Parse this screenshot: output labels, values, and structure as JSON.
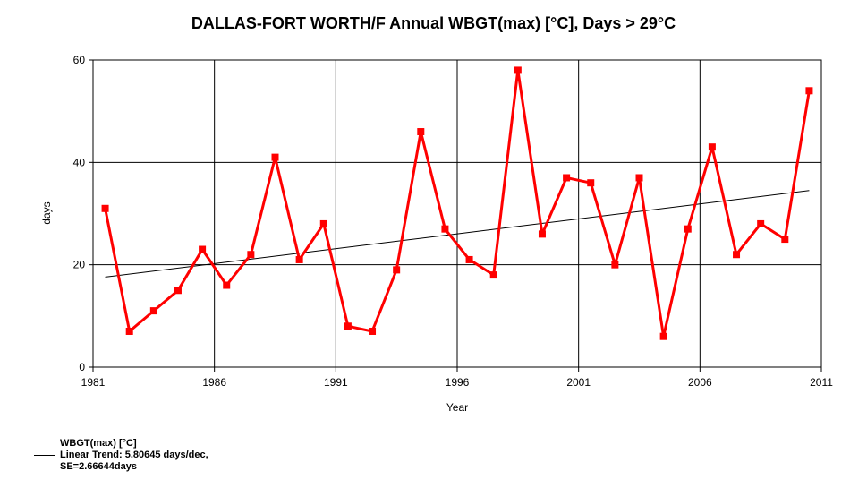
{
  "title": "DALLAS-FORT WORTH/F Annual WBGT(max) [°C], Days > 29°C",
  "chart_data": {
    "type": "line",
    "title": "DALLAS-FORT WORTH/F Annual WBGT(max) [°C], Days > 29°C",
    "xlabel": "Year",
    "ylabel": "days",
    "xlim": [
      1981,
      2011
    ],
    "ylim": [
      0,
      60
    ],
    "xticks": [
      1981,
      1986,
      1991,
      1996,
      2001,
      2006,
      2011
    ],
    "yticks": [
      0,
      20,
      40,
      60
    ],
    "grid": true,
    "legend_position": "bottom-left",
    "series": [
      {
        "name": "WBGT(max) [°C]",
        "color": "#ff0000",
        "marker": "square",
        "x": [
          1981.5,
          1982.5,
          1983.5,
          1984.5,
          1985.5,
          1986.5,
          1987.5,
          1988.5,
          1989.5,
          1990.5,
          1991.5,
          1992.5,
          1993.5,
          1994.5,
          1995.5,
          1996.5,
          1997.5,
          1998.5,
          1999.5,
          2000.5,
          2001.5,
          2002.5,
          2003.5,
          2004.5,
          2005.5,
          2006.5,
          2007.5,
          2008.5,
          2009.5,
          2010.5
        ],
        "y": [
          31,
          7,
          11,
          15,
          23,
          16,
          22,
          41,
          21,
          28,
          8,
          7,
          19,
          46,
          27,
          21,
          18,
          58,
          26,
          37,
          36,
          20,
          37,
          6,
          27,
          43,
          22,
          28,
          25,
          54
        ]
      }
    ],
    "trend": {
      "label_line1": "Linear Trend: 5.80645 days/dec,",
      "label_line2": "SE=2.66644days",
      "color": "#000000",
      "x": [
        1981.5,
        2010.5
      ],
      "y": [
        17.6,
        34.5
      ]
    }
  }
}
